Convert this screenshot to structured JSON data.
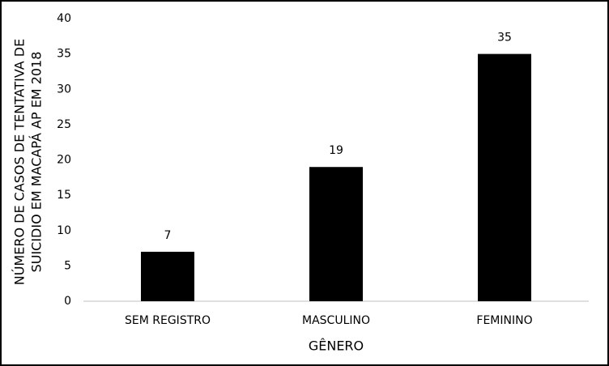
{
  "chart_data": {
    "type": "bar",
    "y_label": [
      "NÚMERO DE CASOS DE TENTATIVA DE",
      "SUICIDIO EM MACAPÁ AP EM 2018"
    ],
    "x_label": "GÊNERO",
    "categories": [
      "SEM REGISTRO",
      "MASCULINO",
      "FEMININO"
    ],
    "values": [
      7,
      19,
      35
    ],
    "color": "#000000",
    "ylim": [
      0,
      40
    ],
    "yticks": [
      0,
      5,
      10,
      15,
      20,
      25,
      30,
      35,
      40
    ],
    "grid": false
  }
}
